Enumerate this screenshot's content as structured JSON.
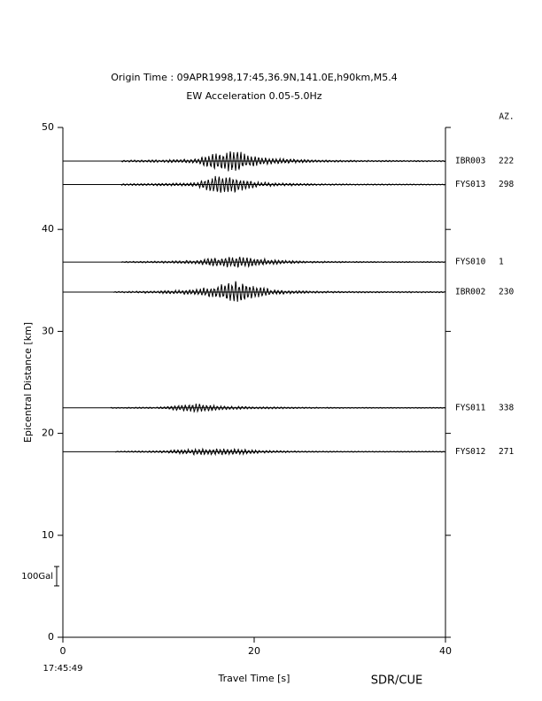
{
  "chart_data": {
    "type": "record_section",
    "title": "Origin Time : 09APR1998,17:45,36.9N,141.0E,h90km,M5.4",
    "subtitle": "EW Acceleration 0.05-5.0Hz",
    "az_header": "AZ.",
    "ylabel": "Epicentral Distance [km]",
    "xlabel": "Travel Time [s]",
    "x_origin_label": "17:45:49",
    "footer": "SDR/CUE",
    "xlim": [
      0,
      40
    ],
    "xticks": [
      0,
      20,
      40
    ],
    "ylim": [
      0,
      50
    ],
    "yticks": [
      0,
      10,
      20,
      30,
      40,
      50
    ],
    "scale_bar": {
      "label": "100Gal",
      "length": 1.9
    },
    "env_t": [
      5,
      10,
      14,
      16,
      18,
      20,
      22,
      26,
      32,
      40
    ],
    "traces": [
      {
        "name": "IBR003",
        "azimuth": 222,
        "distance": 46.7,
        "onset": 6.1,
        "envelope": [
          0.05,
          0.08,
          0.15,
          0.6,
          0.75,
          0.35,
          0.2,
          0.08,
          0.05,
          0.04
        ]
      },
      {
        "name": "FYS013",
        "azimuth": 298,
        "distance": 44.4,
        "onset": 6.1,
        "envelope": [
          0.05,
          0.08,
          0.15,
          0.6,
          0.5,
          0.2,
          0.12,
          0.06,
          0.04,
          0.03
        ]
      },
      {
        "name": "FYS010",
        "azimuth": 1,
        "distance": 36.8,
        "onset": 6.1,
        "envelope": [
          0.03,
          0.06,
          0.12,
          0.35,
          0.38,
          0.3,
          0.15,
          0.06,
          0.04,
          0.03
        ]
      },
      {
        "name": "IBR002",
        "azimuth": 230,
        "distance": 33.85,
        "onset": 5.3,
        "envelope": [
          0.04,
          0.08,
          0.2,
          0.45,
          0.75,
          0.45,
          0.15,
          0.07,
          0.05,
          0.04
        ]
      },
      {
        "name": "FYS011",
        "azimuth": 338,
        "distance": 22.5,
        "onset": 5.0,
        "envelope": [
          0.03,
          0.05,
          0.3,
          0.15,
          0.1,
          0.08,
          0.06,
          0.04,
          0.03,
          0.03
        ]
      },
      {
        "name": "FYS012",
        "azimuth": 271,
        "distance": 18.2,
        "onset": 5.5,
        "envelope": [
          0.03,
          0.06,
          0.22,
          0.25,
          0.2,
          0.12,
          0.07,
          0.04,
          0.03,
          0.03
        ]
      }
    ]
  }
}
